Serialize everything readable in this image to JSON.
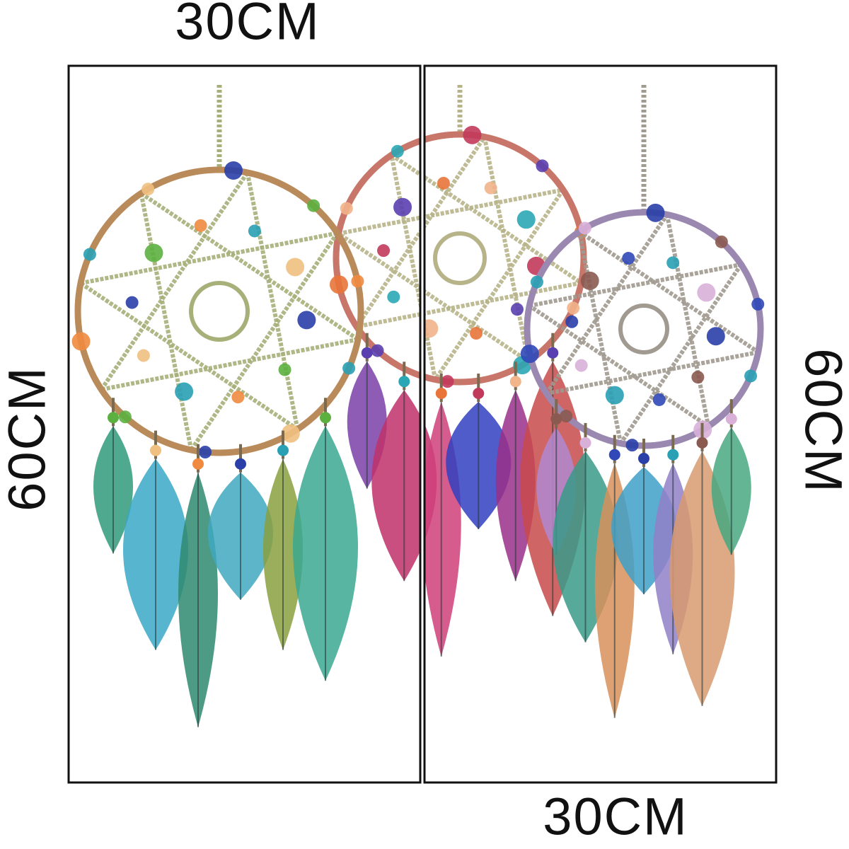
{
  "dimensions": {
    "top_width": "30CM",
    "left_height": "60CM",
    "right_height": "60CM",
    "bottom_width": "30CM"
  }
}
